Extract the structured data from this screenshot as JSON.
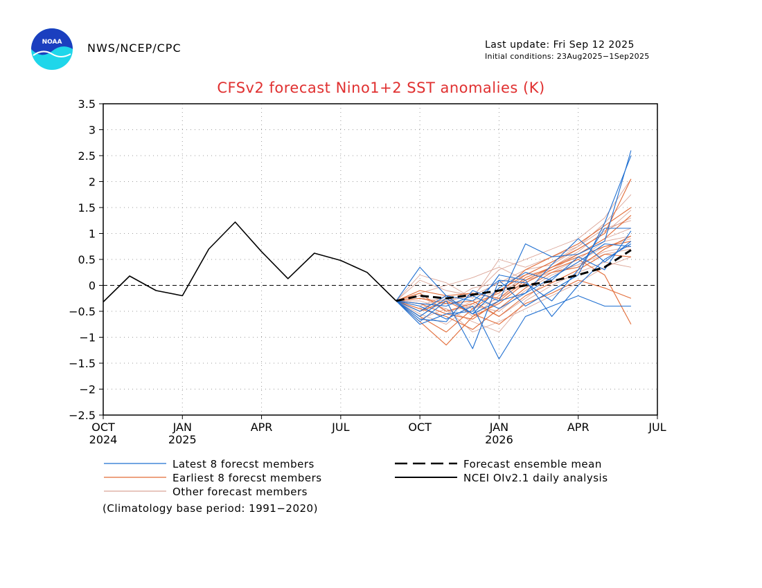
{
  "header": {
    "agency": "NWS/NCEP/CPC",
    "logo_text": "NOAA",
    "last_update": "Last update: Fri Sep 12 2025",
    "initial_conditions": "Initial conditions: 23Aug2025−1Sep2025"
  },
  "footer": {
    "climatology_note": "(Climatology base period: 1991−2020)"
  },
  "colors": {
    "title": "#e03030",
    "latest": "#1f6fd1",
    "earliest": "#e26a35",
    "other": "#dba597",
    "observed": "#000000"
  },
  "chart_data": {
    "type": "line",
    "title": "CFSv2 forecast Nino1+2 SST anomalies (K)",
    "xlabel": "",
    "ylabel": "",
    "ylim": [
      -2.5,
      3.5
    ],
    "yticks": [
      -2.5,
      -2,
      -1.5,
      -1,
      -0.5,
      0,
      0.5,
      1,
      1.5,
      2,
      2.5,
      3,
      3.5
    ],
    "ytick_labels": [
      "−2.5",
      "−2",
      "−1.5",
      "−1",
      "−0.5",
      "0",
      "0.5",
      "1",
      "1.5",
      "2",
      "2.5",
      "3",
      "3.5"
    ],
    "xlim": [
      0,
      21
    ],
    "xticks": [
      {
        "x": 0,
        "label": "OCT",
        "year": "2024"
      },
      {
        "x": 3,
        "label": "JAN",
        "year": "2025"
      },
      {
        "x": 6,
        "label": "APR",
        "year": ""
      },
      {
        "x": 9,
        "label": "JUL",
        "year": ""
      },
      {
        "x": 12,
        "label": "OCT",
        "year": ""
      },
      {
        "x": 15,
        "label": "JAN",
        "year": "2026"
      },
      {
        "x": 18,
        "label": "APR",
        "year": ""
      },
      {
        "x": 21,
        "label": "JUL",
        "year": ""
      }
    ],
    "grid": true,
    "zero_line": true,
    "legend": [
      {
        "label": "Latest 8 forecst members",
        "style": "latest"
      },
      {
        "label": "Earliest 8 forecst members",
        "style": "earliest"
      },
      {
        "label": "Other forecast members",
        "style": "other"
      },
      {
        "label": "Forecast ensemble mean",
        "style": "mean"
      },
      {
        "label": "NCEI OIv2.1 daily analysis",
        "style": "observed"
      }
    ],
    "forecast_x": [
      11.1,
      12,
      13,
      14,
      15,
      16,
      17,
      18,
      19,
      20
    ],
    "series": [
      {
        "name": "NCEI OIv2.1 daily analysis",
        "style": "observed",
        "x": [
          0,
          1,
          2,
          3,
          4,
          5,
          6,
          7,
          8,
          9,
          10,
          11.1
        ],
        "values": [
          -0.32,
          0.18,
          -0.1,
          -0.2,
          0.7,
          1.22,
          0.65,
          0.13,
          0.62,
          0.48,
          0.25,
          -0.3
        ]
      },
      {
        "name": "Forecast ensemble mean",
        "style": "mean",
        "values": [
          -0.3,
          -0.2,
          -0.25,
          -0.18,
          -0.1,
          0.0,
          0.08,
          0.2,
          0.35,
          0.68
        ]
      },
      {
        "name": "Latest member 1",
        "style": "latest",
        "values": [
          -0.3,
          0.35,
          -0.2,
          -0.55,
          -0.3,
          0.8,
          0.55,
          0.6,
          0.85,
          2.6
        ]
      },
      {
        "name": "Latest member 2",
        "style": "latest",
        "values": [
          -0.3,
          -0.7,
          -0.3,
          -1.22,
          0.1,
          -0.4,
          -0.1,
          0.2,
          1.2,
          2.5
        ]
      },
      {
        "name": "Latest member 3",
        "style": "latest",
        "values": [
          -0.3,
          -0.4,
          -0.65,
          -0.4,
          -1.42,
          -0.6,
          -0.4,
          -0.2,
          -0.4,
          -0.4
        ]
      },
      {
        "name": "Latest member 4",
        "style": "latest",
        "values": [
          -0.3,
          -0.5,
          -0.2,
          -0.3,
          0.1,
          0.05,
          -0.3,
          0.3,
          1.1,
          1.1
        ]
      },
      {
        "name": "Latest member 5",
        "style": "latest",
        "values": [
          -0.3,
          -0.65,
          -0.7,
          -0.1,
          -0.3,
          -0.15,
          0.4,
          0.9,
          0.45,
          0.85
        ]
      },
      {
        "name": "Latest member 6",
        "style": "latest",
        "values": [
          -0.3,
          -0.75,
          -0.55,
          -0.5,
          0.2,
          0.1,
          -0.6,
          0.0,
          0.5,
          0.8
        ]
      },
      {
        "name": "Latest member 7",
        "style": "latest",
        "values": [
          -0.3,
          -0.35,
          -0.4,
          -0.2,
          -0.45,
          -0.15,
          0.15,
          0.45,
          0.8,
          0.75
        ]
      },
      {
        "name": "Latest member 8",
        "style": "latest",
        "values": [
          -0.3,
          -0.6,
          -0.25,
          -0.55,
          -0.05,
          0.25,
          0.1,
          0.55,
          0.3,
          1.05
        ]
      },
      {
        "name": "Earliest member 1",
        "style": "earliest",
        "values": [
          -0.3,
          -0.35,
          -0.55,
          -0.65,
          -0.3,
          0.1,
          0.35,
          0.6,
          0.9,
          1.35
        ]
      },
      {
        "name": "Earliest member 2",
        "style": "earliest",
        "values": [
          -0.3,
          -0.6,
          -0.9,
          -0.45,
          -0.1,
          0.2,
          0.45,
          0.7,
          1.0,
          2.05
        ]
      },
      {
        "name": "Earliest member 3",
        "style": "earliest",
        "values": [
          -0.3,
          -0.25,
          -0.35,
          -0.3,
          -0.6,
          -0.2,
          0.05,
          0.3,
          0.6,
          0.55
        ]
      },
      {
        "name": "Earliest member 4",
        "style": "earliest",
        "values": [
          -0.3,
          -0.45,
          -0.6,
          -0.85,
          -0.45,
          -0.05,
          0.25,
          0.35,
          0.7,
          0.95
        ]
      },
      {
        "name": "Earliest member 5",
        "style": "earliest",
        "values": [
          -0.3,
          -0.1,
          -0.2,
          -0.15,
          -0.25,
          0.15,
          0.35,
          0.55,
          0.75,
          0.85
        ]
      },
      {
        "name": "Earliest member 6",
        "style": "earliest",
        "values": [
          -0.3,
          -0.5,
          -0.3,
          -0.55,
          -0.75,
          -0.35,
          -0.15,
          0.1,
          -0.05,
          -0.25
        ]
      },
      {
        "name": "Earliest member 7",
        "style": "earliest",
        "values": [
          -0.3,
          -0.7,
          -1.15,
          -0.6,
          -0.35,
          0.05,
          0.3,
          0.5,
          0.2,
          -0.75
        ]
      },
      {
        "name": "Earliest member 8",
        "style": "earliest",
        "values": [
          -0.3,
          -0.15,
          -0.5,
          -0.35,
          -0.15,
          0.3,
          0.55,
          0.8,
          1.15,
          1.5
        ]
      },
      {
        "name": "Other member 1",
        "style": "other",
        "values": [
          -0.3,
          0.1,
          -0.1,
          -0.2,
          0.3,
          0.5,
          0.7,
          0.9,
          1.3,
          2.05
        ]
      },
      {
        "name": "Other member 2",
        "style": "other",
        "values": [
          -0.3,
          -0.4,
          -0.2,
          -0.6,
          -0.2,
          0.2,
          0.3,
          0.6,
          0.9,
          1.1
        ]
      },
      {
        "name": "Other member 3",
        "style": "other",
        "values": [
          -0.3,
          -0.2,
          -0.5,
          -0.4,
          -0.5,
          -0.1,
          0.2,
          0.4,
          0.6,
          0.7
        ]
      },
      {
        "name": "Other member 4",
        "style": "other",
        "values": [
          -0.3,
          -0.5,
          -0.35,
          -0.05,
          0.05,
          0.3,
          0.4,
          0.7,
          1.0,
          1.45
        ]
      },
      {
        "name": "Other member 5",
        "style": "other",
        "values": [
          -0.3,
          -0.3,
          -0.45,
          -0.7,
          -0.9,
          -0.3,
          0.0,
          0.25,
          0.45,
          0.35
        ]
      },
      {
        "name": "Other member 6",
        "style": "other",
        "values": [
          -0.3,
          0.2,
          0.05,
          -0.25,
          0.5,
          0.35,
          0.55,
          0.75,
          1.1,
          1.25
        ]
      },
      {
        "name": "Other member 7",
        "style": "other",
        "values": [
          -0.3,
          -0.55,
          -0.75,
          -0.35,
          -0.6,
          -0.25,
          0.15,
          0.45,
          0.75,
          0.9
        ]
      },
      {
        "name": "Other member 8",
        "style": "other",
        "values": [
          -0.3,
          -0.15,
          0.0,
          0.15,
          0.35,
          0.1,
          0.25,
          0.5,
          0.85,
          0.95
        ]
      },
      {
        "name": "Other member 9",
        "style": "other",
        "values": [
          -0.3,
          -0.45,
          -0.25,
          -0.45,
          -0.25,
          0.05,
          0.35,
          0.65,
          1.05,
          1.3
        ]
      },
      {
        "name": "Other member 10",
        "style": "other",
        "values": [
          -0.3,
          -0.65,
          -0.45,
          -0.9,
          -0.7,
          -0.45,
          -0.2,
          0.05,
          0.35,
          0.55
        ]
      },
      {
        "name": "Other member 11",
        "style": "other",
        "values": [
          -0.3,
          -0.25,
          -0.3,
          -0.2,
          0.05,
          0.2,
          0.45,
          0.75,
          1.2,
          1.75
        ]
      },
      {
        "name": "Other member 12",
        "style": "other",
        "values": [
          -0.3,
          -0.35,
          -0.55,
          -0.3,
          -0.1,
          0.1,
          0.25,
          0.4,
          0.65,
          0.75
        ]
      }
    ]
  }
}
